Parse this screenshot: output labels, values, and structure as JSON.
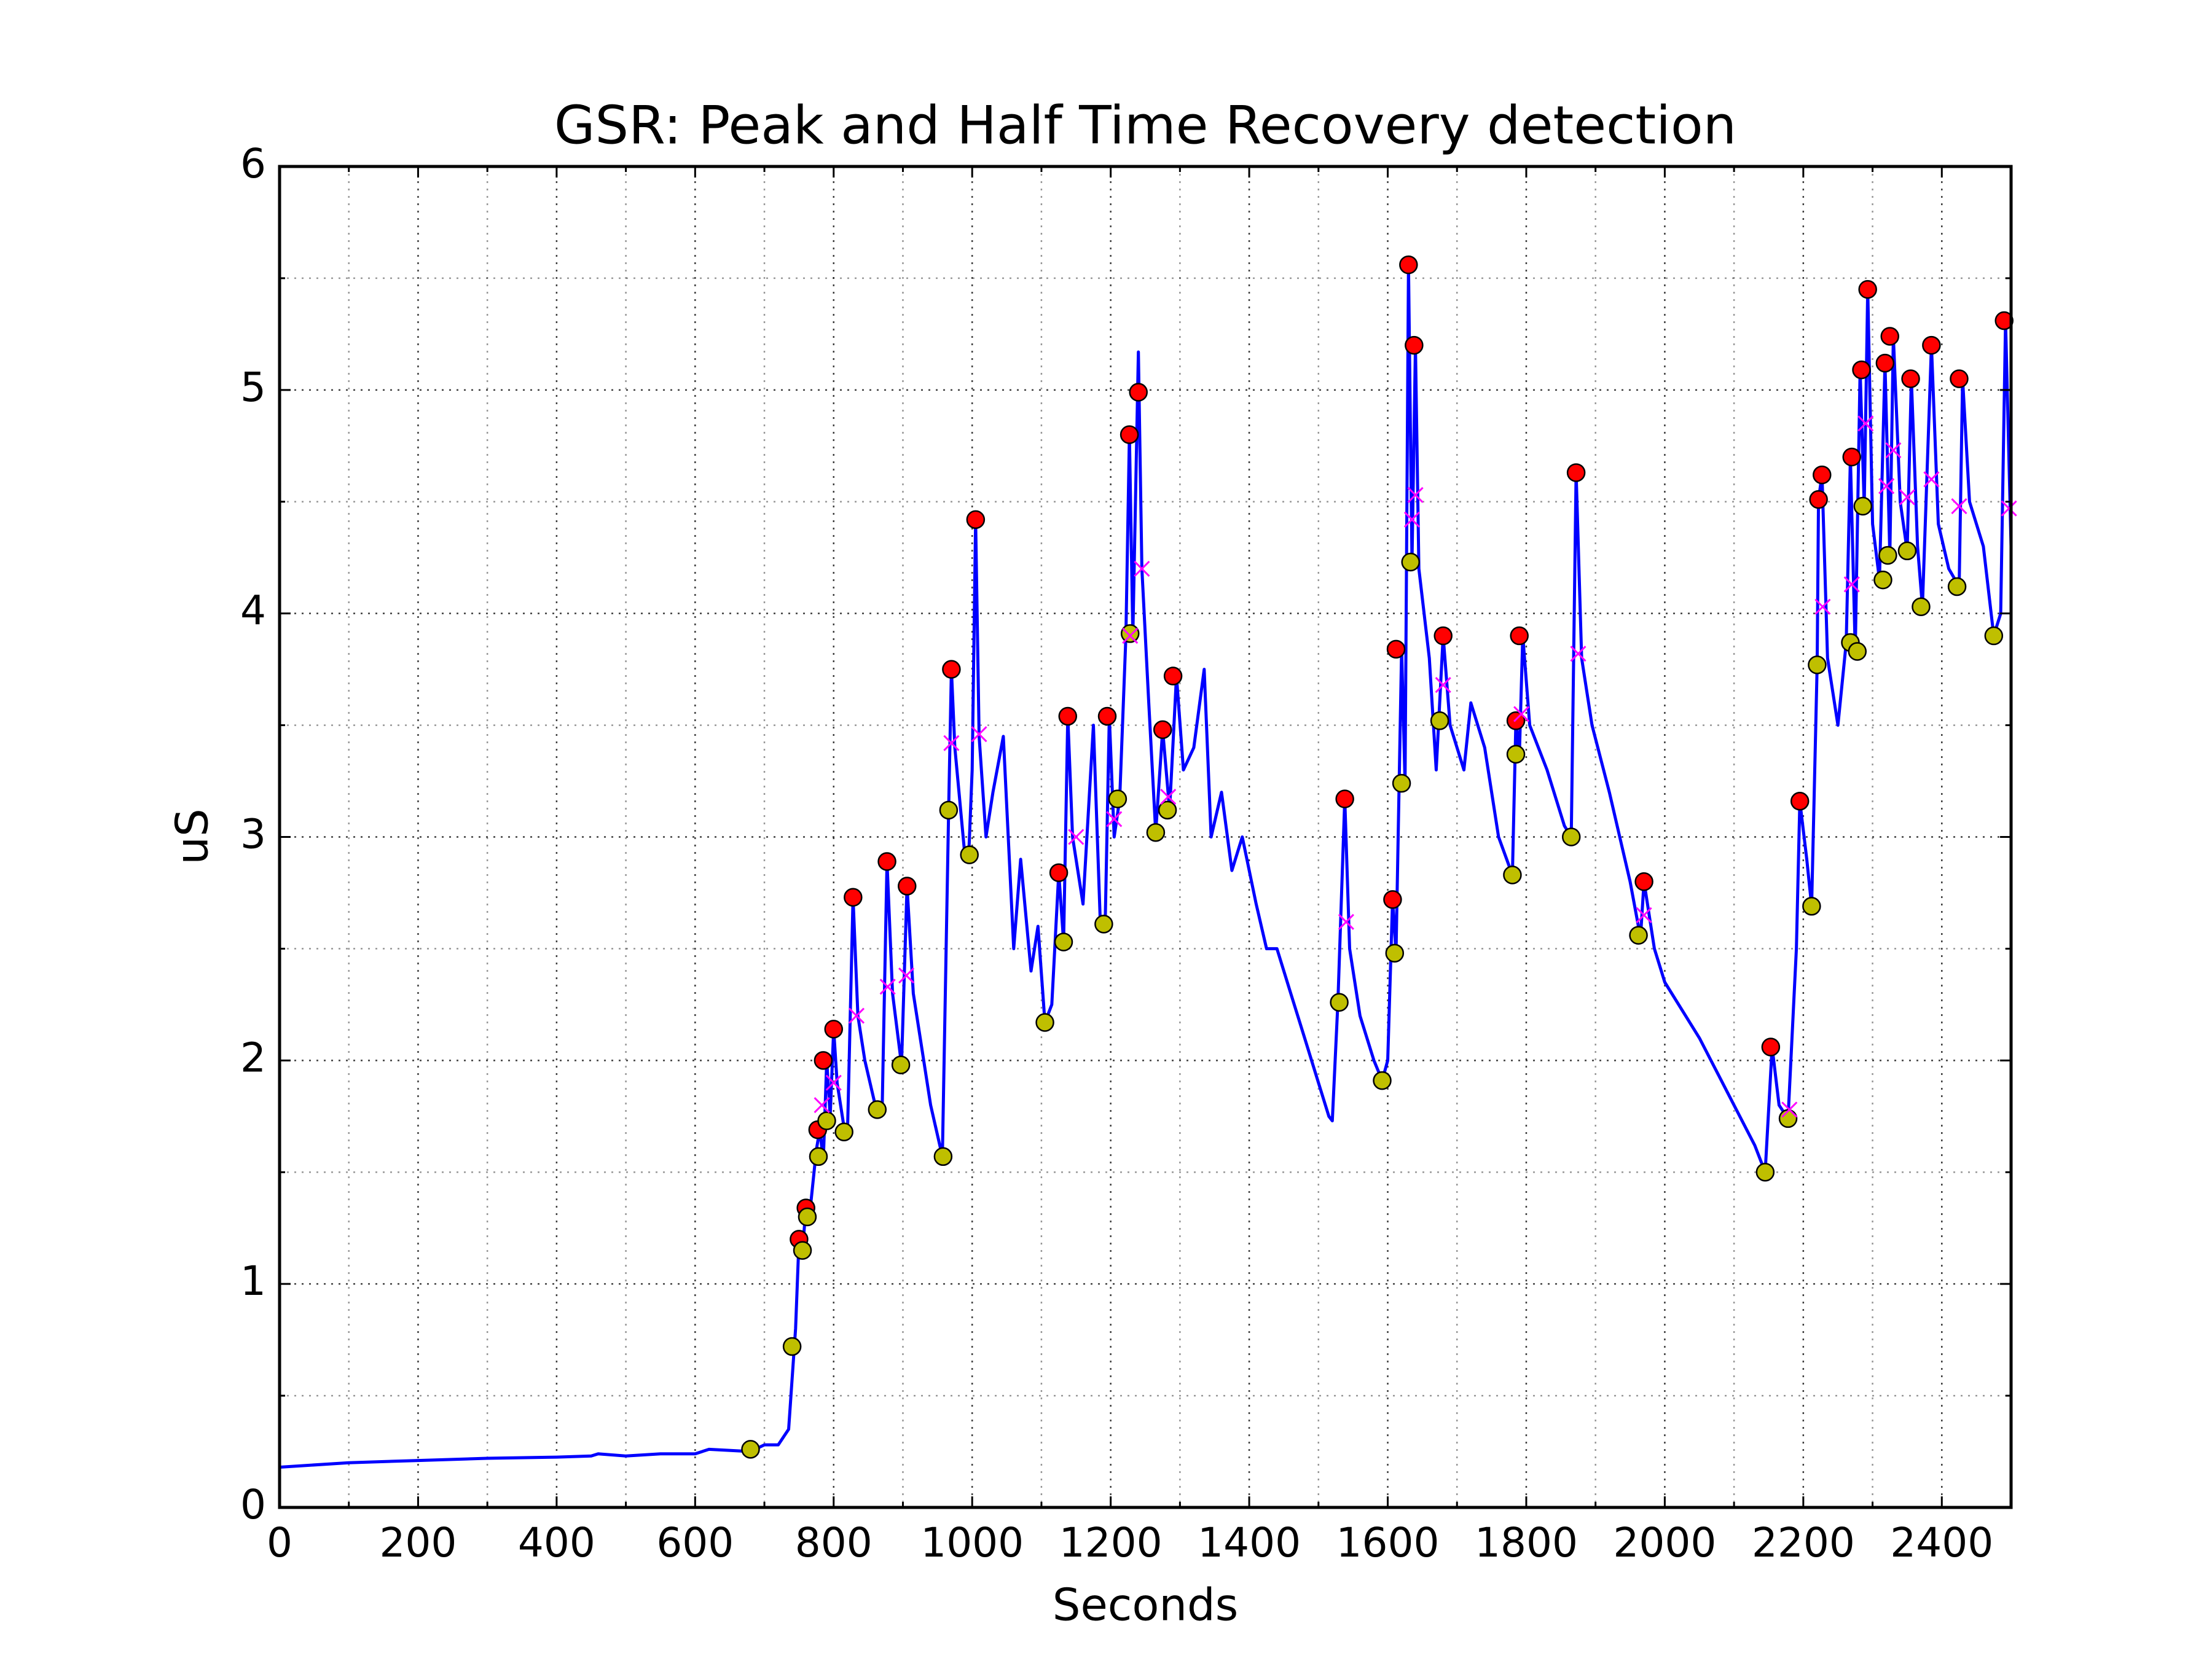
{
  "chart_data": {
    "type": "line",
    "title": "GSR: Peak and Half Time Recovery detection",
    "x_label": "Seconds",
    "y_label": "uS",
    "xlim": [
      0,
      2500
    ],
    "ylim": [
      0,
      6
    ],
    "xticks": [
      0,
      200,
      400,
      600,
      800,
      1000,
      1200,
      1400,
      1600,
      1800,
      2000,
      2200,
      2400
    ],
    "yticks": [
      0,
      1,
      2,
      3,
      4,
      5,
      6
    ],
    "xminorticks": [
      100,
      300,
      500,
      700,
      900,
      1100,
      1300,
      1500,
      1700,
      1900,
      2100,
      2300
    ],
    "yminorticks": [
      0.5,
      1.5,
      2.5,
      3.5,
      4.5,
      5.5
    ],
    "grid": true,
    "series": [
      {
        "marker": "line",
        "color": "#0000ff",
        "x": [
          0,
          100,
          200,
          300,
          400,
          450,
          460,
          500,
          550,
          600,
          620,
          680,
          700,
          720,
          735,
          745,
          750,
          755,
          760,
          765,
          775,
          780,
          785,
          790,
          795,
          800,
          805,
          815,
          820,
          828,
          835,
          845,
          860,
          870,
          877,
          885,
          898,
          906,
          915,
          940,
          957,
          966,
          970,
          975,
          990,
          995,
          1000,
          1005,
          1010,
          1020,
          1030,
          1045,
          1060,
          1070,
          1085,
          1095,
          1105,
          1115,
          1125,
          1132,
          1138,
          1145,
          1160,
          1175,
          1185,
          1192,
          1198,
          1205,
          1213,
          1222,
          1227,
          1232,
          1240,
          1245,
          1255,
          1265,
          1275,
          1285,
          1295,
          1305,
          1320,
          1335,
          1345,
          1360,
          1375,
          1390,
          1410,
          1425,
          1440,
          1460,
          1480,
          1500,
          1515,
          1520,
          1528,
          1538,
          1545,
          1560,
          1580,
          1592,
          1600,
          1607,
          1612,
          1620,
          1625,
          1630,
          1635,
          1640,
          1645,
          1660,
          1670,
          1680,
          1690,
          1710,
          1720,
          1740,
          1760,
          1780,
          1785,
          1790,
          1795,
          1805,
          1830,
          1855,
          1865,
          1872,
          1880,
          1895,
          1920,
          1950,
          1965,
          1970,
          1985,
          2000,
          2050,
          2100,
          2130,
          2145,
          2155,
          2165,
          2178,
          2190,
          2195,
          2205,
          2212,
          2220,
          2222,
          2227,
          2235,
          2250,
          2262,
          2268,
          2275,
          2282,
          2288,
          2293,
          2300,
          2310,
          2318,
          2325,
          2330,
          2340,
          2350,
          2356,
          2365,
          2372,
          2385,
          2395,
          2410,
          2425,
          2430,
          2440,
          2460,
          2475,
          2485,
          2492,
          2500
        ],
        "values": [
          0.18,
          0.2,
          0.21,
          0.22,
          0.225,
          0.23,
          0.24,
          0.23,
          0.24,
          0.24,
          0.26,
          0.25,
          0.28,
          0.28,
          0.35,
          0.8,
          1.2,
          1.15,
          1.34,
          1.3,
          1.6,
          1.69,
          1.55,
          2.0,
          1.75,
          2.14,
          1.9,
          1.7,
          1.68,
          2.73,
          2.2,
          2.0,
          1.8,
          1.78,
          2.89,
          2.3,
          1.98,
          2.78,
          2.3,
          1.8,
          1.57,
          3.12,
          3.75,
          3.4,
          2.9,
          2.92,
          3.3,
          4.42,
          3.45,
          3.0,
          3.2,
          3.45,
          2.5,
          2.9,
          2.4,
          2.6,
          2.17,
          2.25,
          2.84,
          2.53,
          3.54,
          3.0,
          2.7,
          3.5,
          2.62,
          2.6,
          3.54,
          3.0,
          3.17,
          3.9,
          4.8,
          3.9,
          5.17,
          4.2,
          3.6,
          3.02,
          3.48,
          3.12,
          3.72,
          3.3,
          3.4,
          3.75,
          3.0,
          3.2,
          2.85,
          3.0,
          2.7,
          2.5,
          2.5,
          2.3,
          2.1,
          1.9,
          1.75,
          1.73,
          2.26,
          3.17,
          2.5,
          2.2,
          2.0,
          1.91,
          2.0,
          2.72,
          2.48,
          3.84,
          3.24,
          5.56,
          4.23,
          5.2,
          4.2,
          3.8,
          3.3,
          3.9,
          3.5,
          3.3,
          3.6,
          3.4,
          3.0,
          2.83,
          3.52,
          3.36,
          3.9,
          3.5,
          3.3,
          3.05,
          3.0,
          4.63,
          3.8,
          3.5,
          3.2,
          2.8,
          2.55,
          2.8,
          2.5,
          2.35,
          2.1,
          1.8,
          1.62,
          1.5,
          2.06,
          1.8,
          1.74,
          2.5,
          3.16,
          2.9,
          2.69,
          3.77,
          4.51,
          4.62,
          3.8,
          3.5,
          3.87,
          4.7,
          3.83,
          5.09,
          4.48,
          5.45,
          4.4,
          4.15,
          5.12,
          4.26,
          5.24,
          4.5,
          4.28,
          5.05,
          4.3,
          4.03,
          5.2,
          4.4,
          4.2,
          4.12,
          5.05,
          4.5,
          4.3,
          3.9,
          4.0,
          5.31,
          4.3
        ]
      },
      {
        "marker": "o",
        "color": "#ff0000",
        "x": [
          750,
          760,
          777,
          785,
          800,
          828,
          877,
          906,
          970,
          1005,
          1125,
          1138,
          1195,
          1227,
          1240,
          1275,
          1290,
          1538,
          1607,
          1612,
          1630,
          1638,
          1680,
          1785,
          1790,
          1872,
          1970,
          2153,
          2195,
          2222,
          2227,
          2270,
          2284,
          2293,
          2318,
          2325,
          2355,
          2385,
          2425,
          2490
        ],
        "values": [
          1.2,
          1.34,
          1.69,
          2.0,
          2.14,
          2.73,
          2.89,
          2.78,
          3.75,
          4.42,
          2.84,
          3.54,
          3.54,
          4.8,
          4.99,
          3.48,
          3.72,
          3.17,
          2.72,
          3.84,
          5.56,
          5.2,
          3.9,
          3.52,
          3.9,
          4.63,
          2.8,
          2.06,
          3.16,
          4.51,
          4.62,
          4.7,
          5.09,
          5.45,
          5.12,
          5.24,
          5.05,
          5.2,
          5.05,
          5.31
        ]
      },
      {
        "marker": "o",
        "color": "#bfbf00",
        "x": [
          680,
          740,
          755,
          762,
          778,
          790,
          815,
          863,
          897,
          958,
          966,
          996,
          1105,
          1132,
          1190,
          1210,
          1228,
          1265,
          1282,
          1530,
          1592,
          1610,
          1620,
          1633,
          1675,
          1780,
          1785,
          1865,
          1962,
          2145,
          2178,
          2212,
          2220,
          2268,
          2278,
          2286,
          2315,
          2322,
          2350,
          2370,
          2422,
          2475
        ],
        "values": [
          0.26,
          0.72,
          1.15,
          1.3,
          1.57,
          1.73,
          1.68,
          1.78,
          1.98,
          1.57,
          3.12,
          2.92,
          2.17,
          2.53,
          2.61,
          3.17,
          3.91,
          3.02,
          3.12,
          2.26,
          1.91,
          2.48,
          3.24,
          4.23,
          3.52,
          2.83,
          3.37,
          3.0,
          2.56,
          1.5,
          1.74,
          2.69,
          3.77,
          3.87,
          3.83,
          4.48,
          4.15,
          4.26,
          4.28,
          4.03,
          4.12,
          3.9
        ]
      },
      {
        "marker": "x",
        "color": "#ff00ff",
        "x": [
          783,
          800,
          833,
          878,
          905,
          970,
          1010,
          1150,
          1205,
          1228,
          1245,
          1283,
          1540,
          1635,
          1640,
          1680,
          1793,
          1875,
          1970,
          2180,
          2228,
          2270,
          2290,
          2320,
          2330,
          2350,
          2385,
          2425,
          2497
        ],
        "values": [
          1.8,
          1.9,
          2.2,
          2.33,
          2.38,
          3.42,
          3.46,
          3.0,
          3.08,
          3.9,
          4.2,
          3.18,
          2.62,
          4.42,
          4.53,
          3.68,
          3.55,
          3.82,
          2.65,
          1.78,
          4.03,
          4.13,
          4.85,
          4.57,
          4.73,
          4.52,
          4.6,
          4.48,
          4.47
        ]
      }
    ]
  }
}
